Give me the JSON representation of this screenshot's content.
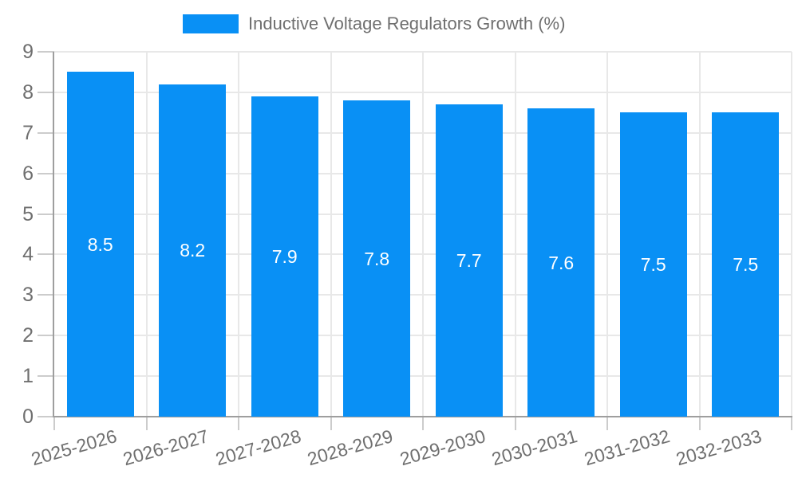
{
  "chart_data": {
    "type": "bar",
    "title": "Inductive Voltage Regulators Growth (%)",
    "categories": [
      "2025-2026",
      "2026-2027",
      "2027-2028",
      "2028-2029",
      "2029-2030",
      "2030-2031",
      "2031-2032",
      "2032-2033"
    ],
    "values": [
      8.5,
      8.2,
      7.9,
      7.8,
      7.7,
      7.6,
      7.5,
      7.5
    ],
    "value_labels": [
      "8.5",
      "8.2",
      "7.9",
      "7.8",
      "7.7",
      "7.6",
      "7.5",
      "7.5"
    ],
    "xlabel": "",
    "ylabel": "",
    "ylim": [
      0,
      9
    ],
    "y_ticks": [
      0,
      1,
      2,
      3,
      4,
      5,
      6,
      7,
      8,
      9
    ],
    "grid": true,
    "legend_position": "top",
    "colors": {
      "bar": "#0990f5",
      "bar_value_text": "#ffffff",
      "axis_text": "#6f6f6f",
      "gridline": "#e8e8e8",
      "tick": "#cccccc",
      "axis_line": "#9e9e9e",
      "background": "#ffffff"
    }
  }
}
